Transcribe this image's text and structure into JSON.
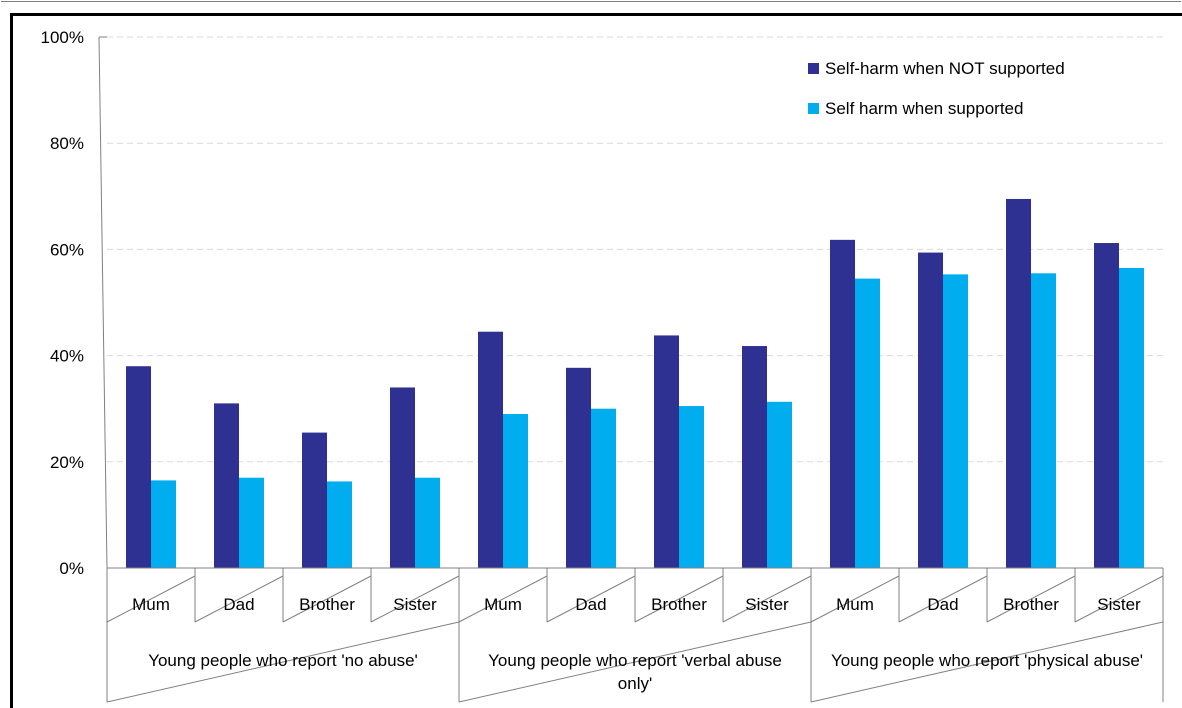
{
  "colors": {
    "series_not_supported": "#2e3192",
    "series_supported": "#00aeef",
    "gridline": "#d9d9d9",
    "axis": "#808080",
    "frame": "#000000"
  },
  "chart_data": {
    "type": "bar",
    "title": "",
    "xlabel": "",
    "ylabel": "",
    "ylim": [
      0,
      1
    ],
    "y_ticks": [
      {
        "value": 0,
        "label": "0%"
      },
      {
        "value": 0.2,
        "label": "20%"
      },
      {
        "value": 0.4,
        "label": "40%"
      },
      {
        "value": 0.6,
        "label": "60%"
      },
      {
        "value": 0.8,
        "label": "80%"
      },
      {
        "value": 1.0,
        "label": "100%"
      }
    ],
    "grid": true,
    "legend_position": "top-right",
    "groups": [
      {
        "label": "Young people who report 'no abuse'",
        "label_lines": [
          "Young people who report 'no abuse'"
        ],
        "categories": [
          "Mum",
          "Dad",
          "Brother",
          "Sister"
        ]
      },
      {
        "label": "Young people who report 'verbal abuse only'",
        "label_lines": [
          "Young people who report 'verbal abuse",
          "only'"
        ],
        "categories": [
          "Mum",
          "Dad",
          "Brother",
          "Sister"
        ]
      },
      {
        "label": "Young people who report 'physical abuse'",
        "label_lines": [
          "Young people who report 'physical abuse'"
        ],
        "categories": [
          "Mum",
          "Dad",
          "Brother",
          "Sister"
        ]
      }
    ],
    "categories": [
      "Mum",
      "Dad",
      "Brother",
      "Sister",
      "Mum",
      "Dad",
      "Brother",
      "Sister",
      "Mum",
      "Dad",
      "Brother",
      "Sister"
    ],
    "series": [
      {
        "name": "Self-harm when NOT supported",
        "values": [
          0.38,
          0.31,
          0.255,
          0.34,
          0.445,
          0.377,
          0.438,
          0.418,
          0.618,
          0.594,
          0.695,
          0.612
        ]
      },
      {
        "name": "Self harm when supported",
        "values": [
          0.165,
          0.17,
          0.163,
          0.17,
          0.29,
          0.3,
          0.305,
          0.313,
          0.545,
          0.553,
          0.555,
          0.565
        ]
      }
    ]
  }
}
